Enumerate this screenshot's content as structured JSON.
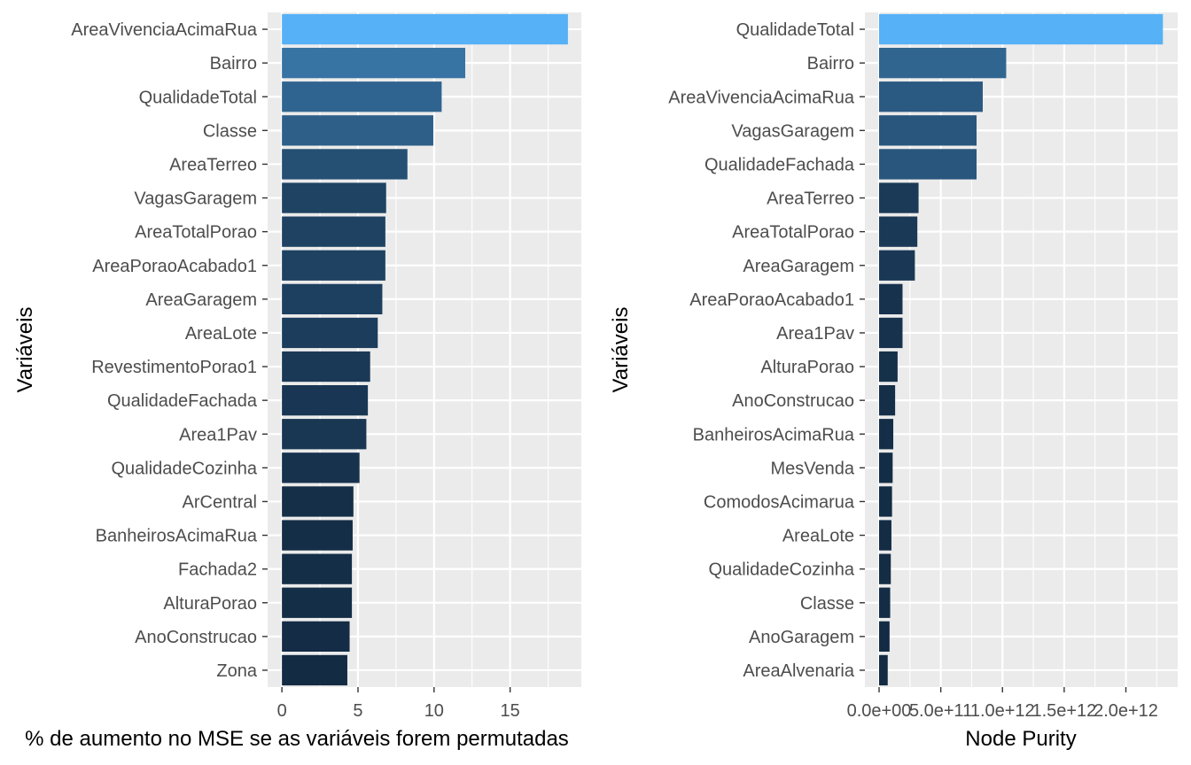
{
  "chart_data": [
    {
      "type": "bar",
      "orientation": "horizontal",
      "xlabel": "% de aumento no MSE se as variáveis forem permutadas",
      "ylabel": "Variáveis",
      "xlim": [
        -0.94,
        19.68
      ],
      "xticks": [
        0,
        5,
        10,
        15
      ],
      "xtick_labels": [
        "0",
        "5",
        "10",
        "15"
      ],
      "grid": true,
      "color_low": "#132B43",
      "color_high": "#56B1F7",
      "categories": [
        "AreaVivenciaAcimaRua",
        "Bairro",
        "QualidadeTotal",
        "Classe",
        "AreaTerreo",
        "VagasGaragem",
        "AreaTotalPorao",
        "AreaPoraoAcabado1",
        "AreaGaragem",
        "AreaLote",
        "RevestimentoPorao1",
        "QualidadeFachada",
        "Area1Pav",
        "QualidadeCozinha",
        "ArCentral",
        "BanheirosAcimaRua",
        "Fachada2",
        "AlturaPorao",
        "AnoConstrucao",
        "Zona"
      ],
      "values": [
        18.8,
        12.05,
        10.5,
        9.95,
        8.25,
        6.85,
        6.8,
        6.8,
        6.6,
        6.3,
        5.8,
        5.65,
        5.55,
        5.1,
        4.7,
        4.65,
        4.6,
        4.6,
        4.45,
        4.3
      ]
    },
    {
      "type": "bar",
      "orientation": "horizontal",
      "xlabel": "Node Purity",
      "ylabel": "Variáveis",
      "xlim": [
        -115000000000.0,
        2420000000000.0
      ],
      "xticks": [
        0,
        500000000000.0,
        1000000000000.0,
        1500000000000.0,
        2000000000000.0
      ],
      "xtick_labels": [
        "0.0e+00",
        "5.0e+11",
        "1.0e+12",
        "1.5e+12",
        "2.0e+12"
      ],
      "grid": true,
      "color_low": "#132B43",
      "color_high": "#56B1F7",
      "categories": [
        "QualidadeTotal",
        "Bairro",
        "AreaVivenciaAcimaRua",
        "VagasGaragem",
        "QualidadeFachada",
        "AreaTerreo",
        "AreaTotalPorao",
        "AreaGaragem",
        "AreaPoraoAcabado1",
        "Area1Pav",
        "AlturaPorao",
        "AnoConstrucao",
        "BanheirosAcimaRua",
        "MesVenda",
        "ComodosAcimarua",
        "AreaLote",
        "QualidadeCozinha",
        "Classe",
        "AnoGaragem",
        "AreaAlvenaria"
      ],
      "values": [
        2300000000000.0,
        1030000000000.0,
        840000000000.0,
        790000000000.0,
        790000000000.0,
        320000000000.0,
        310000000000.0,
        290000000000.0,
        190000000000.0,
        190000000000.0,
        150000000000.0,
        130000000000.0,
        115000000000.0,
        110000000000.0,
        105000000000.0,
        100000000000.0,
        95000000000.0,
        90000000000.0,
        85000000000.0,
        70000000000.0
      ]
    }
  ]
}
